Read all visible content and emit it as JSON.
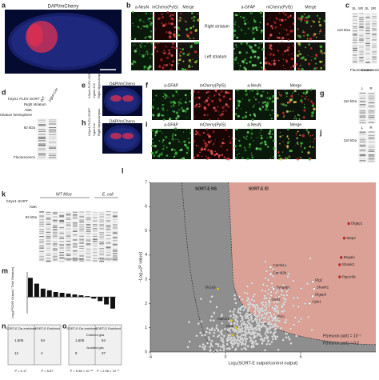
{
  "a": {
    "label": "a",
    "title": "DAPI/mCherry"
  },
  "b": {
    "label": "b",
    "columns": [
      "a-NeuN",
      "mCherry(PylS)",
      "Merge",
      "a-GFAP",
      "mCherry(PylS)",
      "Merge"
    ],
    "rows": [
      "Right striatum",
      "Left striatum"
    ]
  },
  "c": {
    "label": "c",
    "lanes": [
      "SL",
      "SR",
      "SL",
      "SR"
    ],
    "marker": "110 kDa",
    "stains": [
      "Fluorescence",
      "Coomassie"
    ]
  },
  "d": {
    "label": "d",
    "construct": "hSyn1-FLEX-SORT",
    "region": "Right striatum",
    "conditions": [
      "AlaK",
      "Striatum hemisphere"
    ],
    "lanes": [
      "WT",
      "Vglut-Cre"
    ],
    "marker": "92 kDa",
    "stain": "Fluorescence"
  },
  "e": {
    "label": "e",
    "title": "DAPI/mCherry",
    "construct": "hSyn1-FLEX-SORT",
    "driver": "Vglut1-Cre",
    "region": "Right hippocampus"
  },
  "f": {
    "label": "f",
    "columns": [
      "a-GFAP",
      "mCherry(PylS)",
      "a-NeuN",
      "Merge"
    ]
  },
  "g": {
    "label": "g",
    "lanes": [
      "L",
      "R"
    ],
    "marker": "110 kDa"
  },
  "h": {
    "label": "h",
    "title": "DAPI/mCherry",
    "construct": "hSyn1-FLEX-SORT",
    "driver": "Vgat-Cre",
    "region": "Right hippocampus"
  },
  "i": {
    "label": "i",
    "columns": [
      "a-GFAP",
      "mCherry(PylS)",
      "a-NeuN",
      "Merge"
    ]
  },
  "j": {
    "label": "j",
    "lanes": [
      "L",
      "R"
    ],
    "marker": "110 kDa"
  },
  "k": {
    "label": "k",
    "construct": "hSyn1-SORT",
    "groups": [
      "WT Mice",
      "E. coli"
    ],
    "condition": "AlaK",
    "marker": "92 kDa",
    "stains": [
      "Fluorescence",
      "Fluorescence"
    ]
  },
  "l": {
    "label": "l",
    "xlabel": "Log₂(SORT-E output/control output)",
    "ylabel": "−Log₁₀(P value)",
    "regions": [
      "SORT-E NS",
      "SORT-E ID"
    ],
    "xlim": [
      -5,
      10
    ],
    "ylim": [
      0,
      7
    ],
    "xticks": [
      -5,
      0,
      5
    ],
    "yticks": [
      0,
      1,
      2,
      3,
      4,
      5,
      6,
      7
    ],
    "legend": [
      "P(neuron part) = 10⁻⁷",
      "P(neuron part) = 0.2"
    ],
    "genes": [
      "Dlgap1",
      "Map2",
      "Begain",
      "Shank2",
      "Ppp1r9b",
      "Camk2a",
      "Camk2b",
      "Dlg2",
      "Shank1",
      "Dlgap3",
      "Syngap1",
      "Cplx1",
      "Slc1a3",
      "Gad1",
      "Gfap",
      "Aldh1l1",
      "Glul",
      "Pclo"
    ]
  },
  "m": {
    "label": "m",
    "ylabel": "Log₂(PSD95 Output / Total Striatum)",
    "values": [
      2.3,
      1.6,
      1.0,
      0.8,
      0.6,
      0.5,
      0.4,
      0.3,
      0.2,
      0.1,
      -0.2,
      -0.5,
      -0.9,
      -1.4
    ],
    "ylim": [
      -2,
      3
    ]
  },
  "n": {
    "label": "n",
    "headers": [
      "SORT-E De-enriched",
      "SORT-E Enriched"
    ],
    "cells": [
      "1,606",
      "54",
      "12",
      "4"
    ],
    "pvalues": [
      "P = 0.17",
      "P = 5.87"
    ]
  },
  "o": {
    "label": "o",
    "headers": [
      "SORT-E De-enriched",
      "SORT-E Enriched"
    ],
    "rows": [
      "Cultured glia",
      "Isolated glia"
    ],
    "cells": [
      "1,606",
      "54",
      "8",
      "37"
    ],
    "pvalues": [
      "P = 5.38 × 10⁻¹¹",
      "P = 2.06 × 10⁻⁸"
    ]
  }
}
